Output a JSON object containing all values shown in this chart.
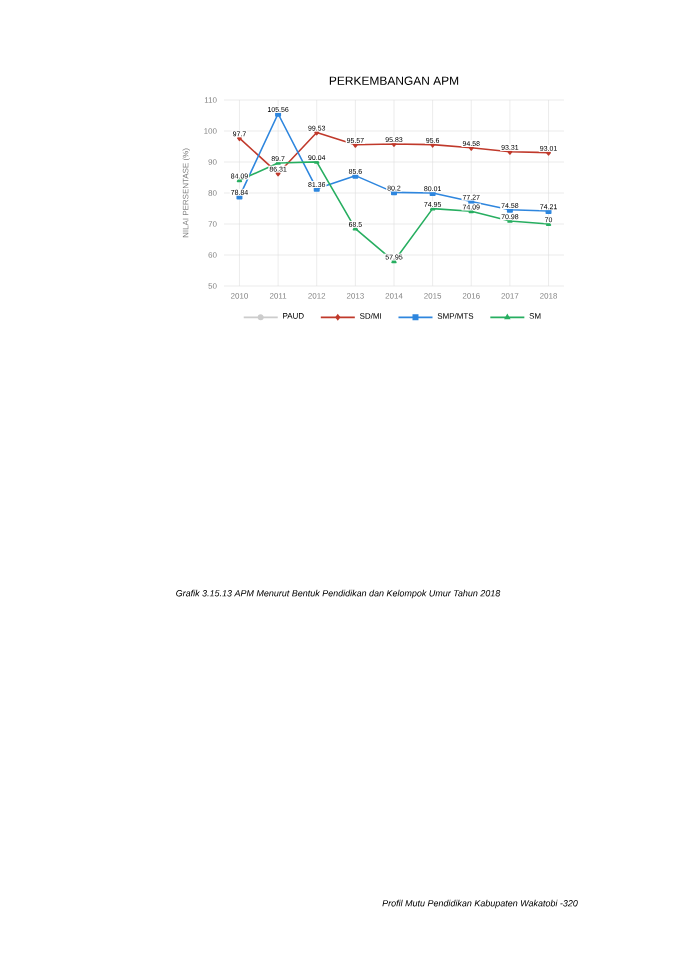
{
  "chart_data": {
    "type": "line",
    "title": "PERKEMBANGAN APM",
    "ylabel": "NILAI PERSENTASE (%)",
    "categories": [
      "2010",
      "2011",
      "2012",
      "2013",
      "2014",
      "2015",
      "2016",
      "2017",
      "2018"
    ],
    "ylim": [
      50,
      110
    ],
    "yticks": [
      50,
      60,
      70,
      80,
      90,
      100,
      110
    ],
    "grid": true,
    "legend": "bottom",
    "series": [
      {
        "name": "PAUD",
        "color": "#cccccc",
        "marker": "circle",
        "values": [
          null,
          null,
          null,
          null,
          null,
          null,
          null,
          null,
          null
        ]
      },
      {
        "name": "SD/MI",
        "color": "#c0392b",
        "marker": "diamond",
        "values": [
          97.7,
          86.31,
          99.53,
          95.57,
          95.83,
          95.6,
          94.58,
          93.31,
          93.01
        ],
        "value_labels": [
          "97.7",
          "86.31",
          "99.53",
          "95.57",
          "95.83",
          "95.6",
          "94.58",
          "93.31",
          "93.01"
        ]
      },
      {
        "name": "SMP/MTS",
        "color": "#2e86de",
        "marker": "square",
        "values": [
          78.84,
          105.56,
          81.36,
          85.6,
          80.2,
          80.01,
          77.27,
          74.58,
          74.21
        ],
        "value_labels": [
          "78.84",
          "105.56",
          "81.36",
          "85.6",
          "80.2",
          "80.01",
          "77.27",
          "74.58",
          "74.21"
        ]
      },
      {
        "name": "SM",
        "color": "#27ae60",
        "marker": "triangle",
        "values": [
          84.09,
          89.7,
          90.04,
          68.5,
          57.95,
          74.95,
          74.09,
          70.98,
          70
        ],
        "value_labels": [
          "84.09",
          "89.7",
          "90.04",
          "68.5",
          "57.95",
          "74.95",
          "74.09",
          "70.98",
          "70"
        ]
      }
    ],
    "annotations": [
      "Grafik 3.15.13 APM Menurut Bentuk Pendidikan dan Kelompok Umur Tahun 2018",
      "Profil Mutu Pendidikan Kabupaten Wakatobi -320"
    ]
  }
}
